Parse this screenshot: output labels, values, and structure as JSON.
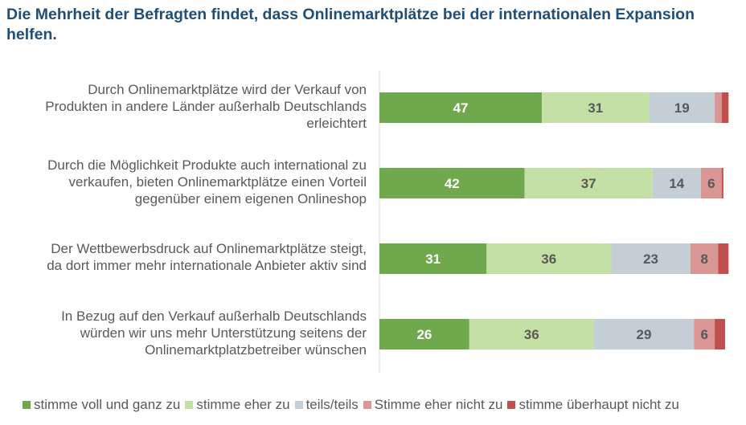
{
  "chart_data": {
    "type": "bar",
    "orientation": "horizontal",
    "stacked": true,
    "title": "Die Mehrheit der Befragten findet, dass Onlinemarktplätze bei der internationalen Expansion helfen.",
    "categories": [
      "Durch Onlinemarktplätze wird der Verkauf von Produkten in andere Länder außerhalb Deutschlands erleichtert",
      "Durch die Möglichkeit Produkte auch international zu verkaufen, bieten Onlinemarktplätze einen Vorteil gegenüber einem eigenen Onlineshop",
      "Der Wettbewerbsdruck auf Onlinemarktplätze steigt, da dort immer mehr internationale Anbieter aktiv sind",
      "In Bezug auf den Verkauf außerhalb Deutschlands würden wir uns mehr Unterstützung seitens der Onlinemarktplatzbetreiber wünschen"
    ],
    "category_lines": [
      [
        "Durch Onlinemarktplätze wird der Verkauf von",
        "Produkten in andere Länder außerhalb Deutschlands",
        "erleichtert"
      ],
      [
        "Durch die Möglichkeit Produkte auch international zu",
        "verkaufen, bieten Onlinemarktplätze einen Vorteil",
        "gegenüber einem eigenen Onlineshop"
      ],
      [
        "Der Wettbewerbsdruck auf Onlinemarktplätze steigt,",
        "da dort immer mehr internationale Anbieter aktiv sind"
      ],
      [
        "In Bezug auf den Verkauf außerhalb Deutschlands",
        "würden wir uns mehr Unterstützung seitens der",
        "Onlinemarktplatzbetreiber wünschen"
      ]
    ],
    "series": [
      {
        "name": "stimme voll und ganz zu",
        "color": "#70a84e",
        "label_color": "#ffffff",
        "values": [
          47,
          42,
          31,
          26
        ],
        "labels": [
          "47",
          "42",
          "31",
          "26"
        ]
      },
      {
        "name": "stimme eher zu",
        "color": "#c5e0a5",
        "label_color": "#595959",
        "values": [
          31,
          37,
          36,
          36
        ],
        "labels": [
          "31",
          "37",
          "36",
          "36"
        ]
      },
      {
        "name": "teils/teils",
        "color": "#c3ced6",
        "label_color": "#595959",
        "values": [
          19,
          14,
          23,
          29
        ],
        "labels": [
          "19",
          "14",
          "23",
          "29"
        ]
      },
      {
        "name": "Stimme eher nicht zu",
        "color": "#d99694",
        "label_color": "#595959",
        "values": [
          2,
          6,
          8,
          6
        ],
        "labels": [
          "",
          "6",
          "8",
          "6"
        ]
      },
      {
        "name": "stimme überhaupt nicht zu",
        "color": "#c0504d",
        "label_color": "#ffffff",
        "values": [
          2,
          0.5,
          3,
          3
        ],
        "labels": [
          "",
          "",
          "",
          ""
        ]
      }
    ],
    "xlim": [
      0,
      100
    ],
    "grid": false,
    "legend_position": "bottom"
  }
}
